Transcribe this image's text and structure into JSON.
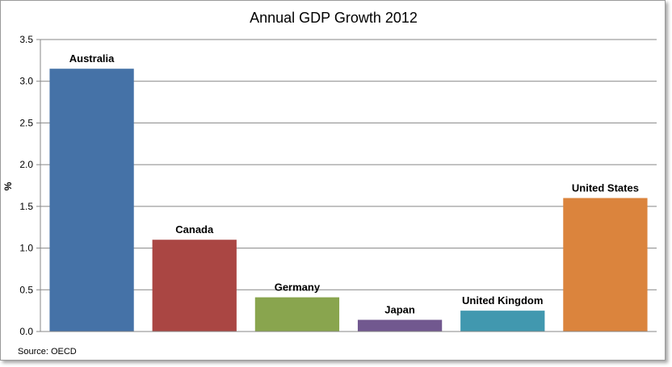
{
  "chart_data": {
    "type": "bar",
    "title": "Annual GDP Growth 2012",
    "ylabel": "%",
    "xlabel": "",
    "categories": [
      "Australia",
      "Canada",
      "Germany",
      "Japan",
      "United Kingdom",
      "United States"
    ],
    "values": [
      3.15,
      1.1,
      0.41,
      0.14,
      0.25,
      1.6
    ],
    "colors": [
      "#4572a7",
      "#aa4643",
      "#89a54e",
      "#71588f",
      "#4198af",
      "#db843d"
    ],
    "ylim": [
      0,
      3.5
    ],
    "yticks": [
      "0.0",
      "0.5",
      "1.0",
      "1.5",
      "2.0",
      "2.5",
      "3.0",
      "3.5"
    ],
    "grid": true,
    "legend": "none",
    "source": "Source: OECD"
  }
}
